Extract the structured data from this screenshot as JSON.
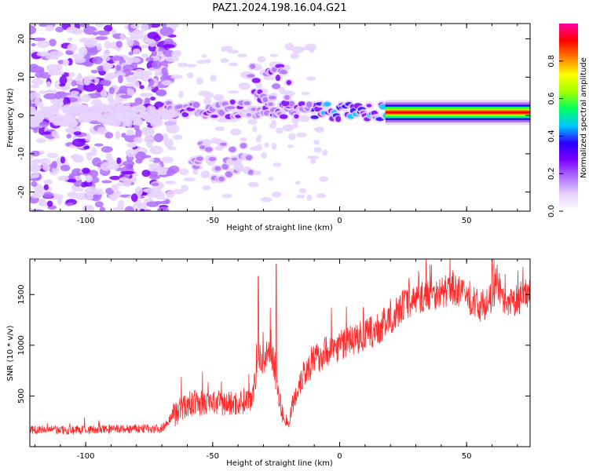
{
  "figure_title": "PAZ1.2024.198.16.04.G21",
  "colors": {
    "snr_line": "#ff2a2a",
    "colormap": [
      "#ffffff",
      "#e6d2ff",
      "#b070ff",
      "#7a00ff",
      "#2a00ff",
      "#00c8ff",
      "#00ff60",
      "#a0ff00",
      "#ffff00",
      "#ff8000",
      "#ff0000",
      "#ff00a0"
    ]
  },
  "chart_data": [
    {
      "type": "heatmap",
      "title": "",
      "xlabel": "Height of straight line (km)",
      "ylabel": "Frequency (Hz)",
      "xlim": [
        -122,
        75
      ],
      "ylim": [
        -25,
        24
      ],
      "x_ticks": [
        -100,
        -50,
        0,
        50
      ],
      "y_ticks": [
        -20,
        -10,
        0,
        10,
        20
      ],
      "colorbar": {
        "label": "Normalized spectral amplitude",
        "range": [
          0,
          1
        ],
        "ticks": [
          0.0,
          0.2,
          0.4,
          0.6,
          0.8
        ]
      },
      "features": [
        {
          "from_x": 18,
          "to_x": 75,
          "freq": 0.8,
          "amplitude": 1.0
        },
        {
          "from_x": -12,
          "to_x": 18,
          "freq": 1.0,
          "amplitude": 0.45
        },
        {
          "from_x": -68,
          "to_x": -12,
          "freq": 1.5,
          "amplitude": 0.25
        },
        {
          "from_x": -35,
          "to_x": -20,
          "freq": 8,
          "amplitude": 0.3
        },
        {
          "from_x": -58,
          "to_x": -35,
          "freq": -12,
          "amplitude": 0.2
        },
        {
          "from_x": -122,
          "to_x": -65,
          "freq": 0,
          "amplitude": 0.1
        }
      ]
    },
    {
      "type": "line",
      "title": "",
      "xlabel": "Height of straight line (km)",
      "ylabel": "SNR (10 * v/v)",
      "xlim": [
        -122,
        75
      ],
      "ylim": [
        0,
        1850
      ],
      "x_ticks": [
        -100,
        -50,
        0,
        50
      ],
      "y_ticks": [
        500,
        1000,
        1500
      ],
      "series": [
        {
          "x": [
            -122,
            -110,
            -100,
            -90,
            -80,
            -70,
            -66,
            -62,
            -58,
            -50,
            -45,
            -40,
            -35,
            -32,
            -29,
            -27,
            -25,
            -22,
            -20,
            -18,
            -15,
            -10,
            -5,
            0,
            5,
            10,
            15,
            20,
            25,
            30,
            35,
            40,
            45,
            50,
            55,
            60,
            62,
            65,
            70,
            75
          ],
          "values": [
            170,
            160,
            165,
            170,
            175,
            180,
            300,
            380,
            430,
            430,
            420,
            430,
            480,
            820,
            880,
            1000,
            600,
            260,
            230,
            450,
            700,
            850,
            950,
            1000,
            1050,
            1100,
            1150,
            1250,
            1400,
            1450,
            1500,
            1520,
            1560,
            1480,
            1380,
            1450,
            1650,
            1350,
            1450,
            1550
          ],
          "spikes": [
            {
              "x": -32,
              "value": 1680
            },
            {
              "x": -25,
              "value": 1800
            },
            {
              "x": 60,
              "value": 1850
            }
          ]
        }
      ]
    }
  ]
}
